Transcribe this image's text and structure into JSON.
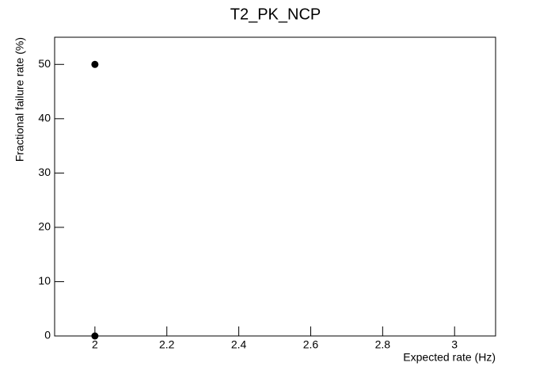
{
  "chart_data": {
    "type": "scatter",
    "title": "T2_PK_NCP",
    "x_label": "Expected rate (Hz)",
    "y_label": "Fractional failure rate (%)",
    "x": [
      2,
      2
    ],
    "values": [
      50,
      0
    ],
    "color": "#000000",
    "xlim": [
      1.888,
      3.114
    ],
    "ylim": [
      0,
      55
    ],
    "xticks": [
      2,
      2.2,
      2.4,
      2.6,
      2.8,
      3
    ],
    "yticks": [
      0,
      10,
      20,
      30,
      40,
      50
    ]
  }
}
